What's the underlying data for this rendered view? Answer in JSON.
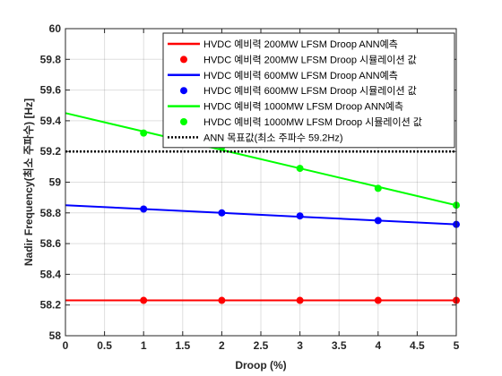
{
  "chart_data": {
    "type": "line",
    "xlabel": "Droop (%)",
    "ylabel": "Nadir Frequency(최소 주파수) [Hz]",
    "xlim": [
      0,
      5
    ],
    "ylim": [
      58,
      60
    ],
    "xticks": [
      "0",
      "0.5",
      "1",
      "1.5",
      "2",
      "2.5",
      "3",
      "3.5",
      "4",
      "4.5",
      "5"
    ],
    "yticks": [
      "58",
      "58.2",
      "58.4",
      "58.6",
      "58.8",
      "59",
      "59.2",
      "59.4",
      "59.6",
      "59.8",
      "60"
    ],
    "grid": true,
    "legend_position": "top-right",
    "series": [
      {
        "name": "HVDC 예비력 200MW LFSM Droop ANN예측",
        "kind": "line",
        "color": "#ff0000",
        "x": [
          0,
          1,
          2,
          3,
          4,
          5
        ],
        "y": [
          58.23,
          58.23,
          58.23,
          58.23,
          58.23,
          58.23
        ]
      },
      {
        "name": "HVDC 예비력 200MW LFSM Droop 시뮬레이션 값",
        "kind": "points",
        "color": "#ff0000",
        "x": [
          1,
          2,
          3,
          4,
          5
        ],
        "y": [
          58.23,
          58.23,
          58.23,
          58.23,
          58.23
        ]
      },
      {
        "name": "HVDC 예비력 600MW LFSM Droop ANN예측",
        "kind": "line",
        "color": "#0000ff",
        "x": [
          0,
          1,
          2,
          3,
          4,
          5
        ],
        "y": [
          58.85,
          58.825,
          58.8,
          58.775,
          58.75,
          58.725
        ]
      },
      {
        "name": "HVDC 예비력 600MW LFSM Droop 시뮬레이션 값",
        "kind": "points",
        "color": "#0000ff",
        "x": [
          1,
          2,
          3,
          4,
          5
        ],
        "y": [
          58.825,
          58.8,
          58.78,
          58.75,
          58.725
        ]
      },
      {
        "name": "HVDC 예비력 1000MW LFSM Droop ANN예측",
        "kind": "line",
        "color": "#00ff00",
        "x": [
          0,
          1,
          2,
          3,
          4,
          5
        ],
        "y": [
          59.45,
          59.33,
          59.21,
          59.09,
          58.97,
          58.85
        ]
      },
      {
        "name": "HVDC 예비력 1000MW LFSM Droop 시뮬레이션 값",
        "kind": "points",
        "color": "#00ff00",
        "x": [
          1,
          2,
          3,
          4,
          5
        ],
        "y": [
          59.32,
          59.23,
          59.09,
          58.96,
          58.85
        ]
      },
      {
        "name": "ANN 목표값(최소 주파수 59.2Hz)",
        "kind": "dotted",
        "color": "#000000",
        "x": [
          0,
          5
        ],
        "y": [
          59.2,
          59.2
        ]
      }
    ]
  }
}
